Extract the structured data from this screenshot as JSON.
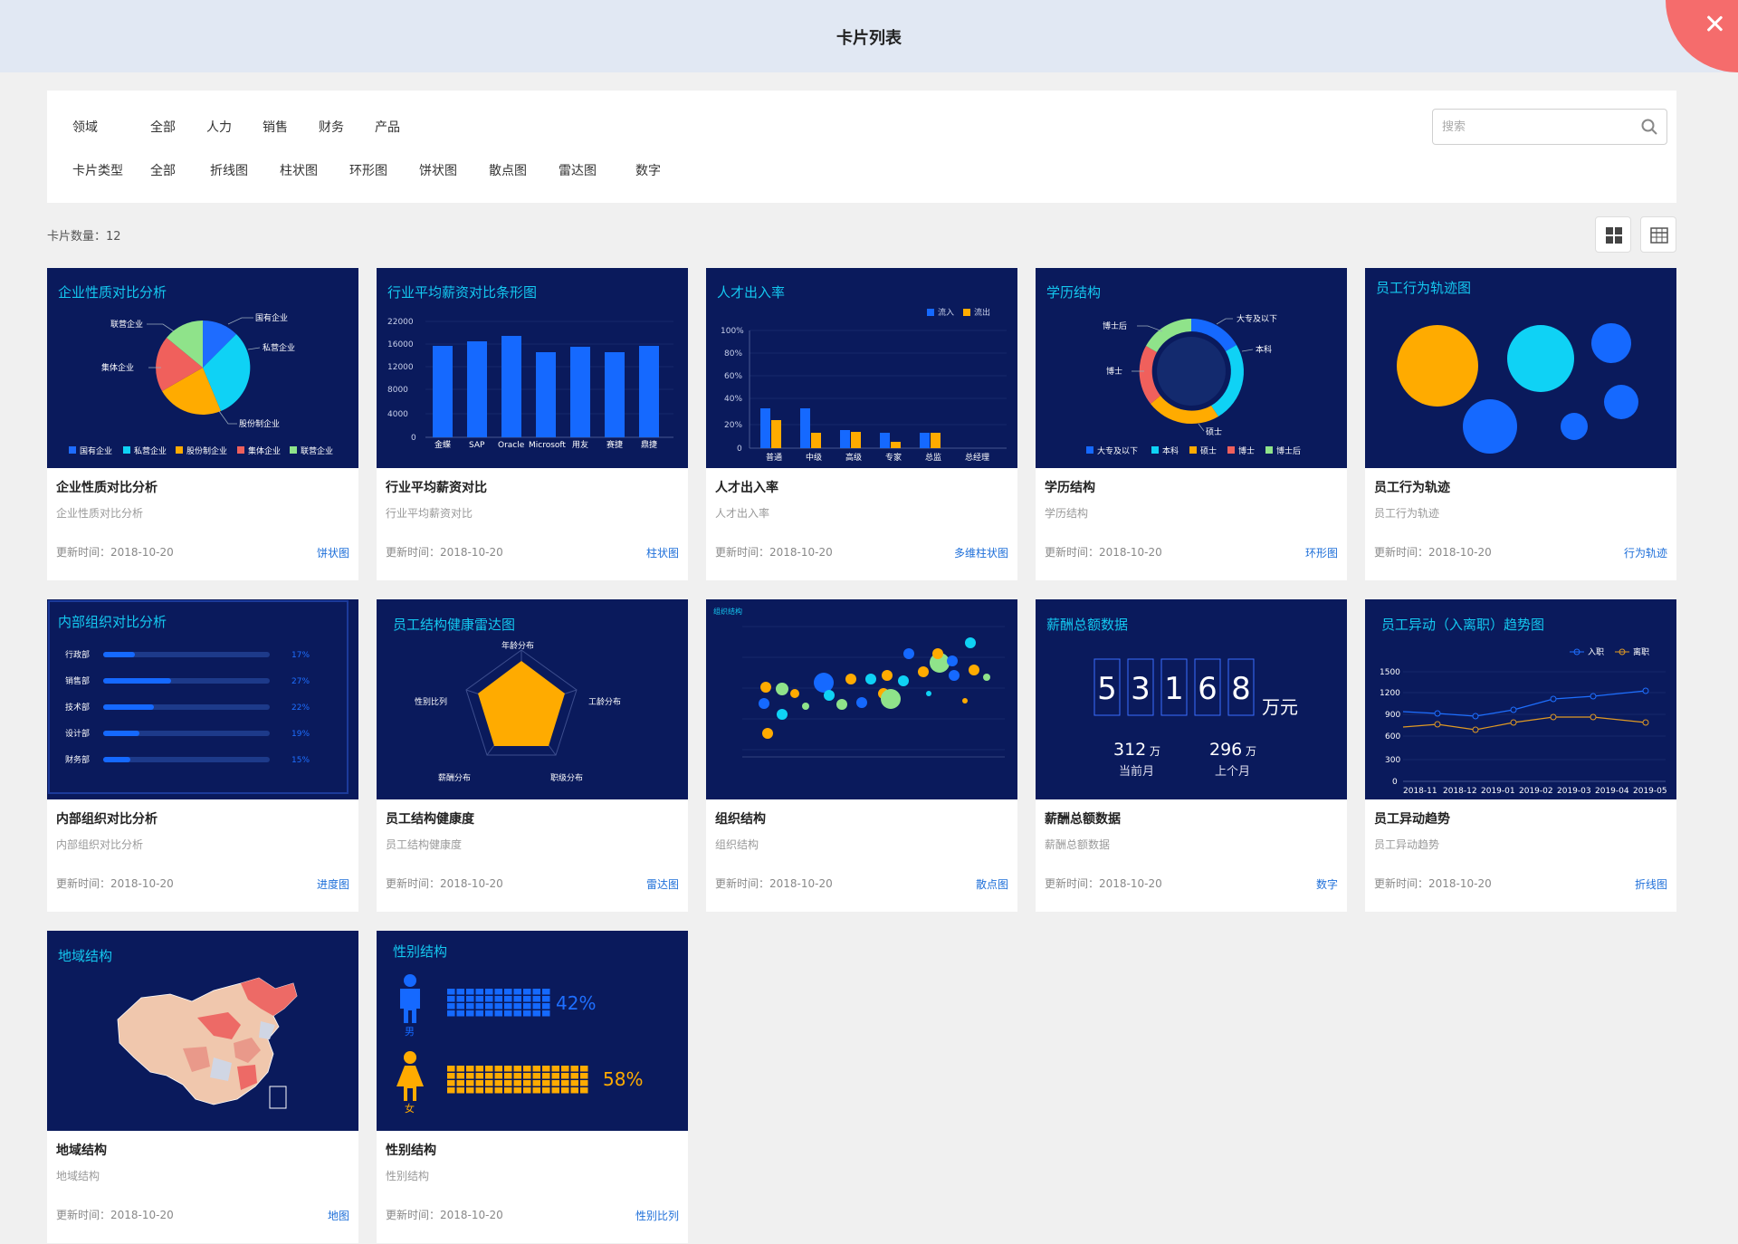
{
  "header": {
    "title": "卡片列表"
  },
  "filters": {
    "domain_label": "领域",
    "domain_options": [
      "全部",
      "人力",
      "销售",
      "财务",
      "产品"
    ],
    "type_label": "卡片类型",
    "type_options": [
      "全部",
      "折线图",
      "柱状图",
      "环形图",
      "饼状图",
      "散点图",
      "雷达图",
      "数字"
    ]
  },
  "search": {
    "placeholder": "搜索"
  },
  "count": {
    "label": "卡片数量：12"
  },
  "colors": {
    "panel": "#0a1a5c",
    "accent": "#1e6fd9",
    "cyan": "#14c8f0",
    "orange": "#ffab00"
  },
  "cards": [
    {
      "thumb_title": "企业性质对比分析",
      "title": "企业性质对比分析",
      "desc": "企业性质对比分析",
      "updated": "更新时间：2018-10-20",
      "type": "饼状图",
      "legend": [
        "国有企业",
        "私营企业",
        "股份制企业",
        "集体企业",
        "联营企业"
      ]
    },
    {
      "thumb_title": "行业平均薪资对比条形图",
      "title": "行业平均薪资对比",
      "desc": "行业平均薪资对比",
      "updated": "更新时间：2018-10-20",
      "type": "柱状图",
      "categories": [
        "金蝶",
        "SAP",
        "Oracle",
        "Microsoft",
        "用友",
        "赛捷",
        "鼎捷"
      ],
      "yticks": [
        "22000",
        "16000",
        "12000",
        "8000",
        "4000",
        "0"
      ]
    },
    {
      "thumb_title": "人才出入率",
      "title": "人才出入率",
      "desc": "人才出入率",
      "updated": "更新时间：2018-10-20",
      "type": "多维柱状图",
      "legend": [
        "流入",
        "流出"
      ],
      "categories": [
        "普通",
        "中级",
        "高级",
        "专家",
        "总监",
        "总经理"
      ],
      "yticks": [
        "100%",
        "80%",
        "60%",
        "40%",
        "20%",
        "0"
      ]
    },
    {
      "thumb_title": "学历结构",
      "title": "学历结构",
      "desc": "学历结构",
      "updated": "更新时间：2018-10-20",
      "type": "环形图",
      "labels": [
        "大专及以下",
        "本科",
        "硕士",
        "博士",
        "博士后"
      ]
    },
    {
      "thumb_title": "员工行为轨迹图",
      "title": "员工行为轨迹",
      "desc": "员工行为轨迹",
      "updated": "更新时间：2018-10-20",
      "type": "行为轨迹"
    },
    {
      "thumb_title": "内部组织对比分析",
      "title": "内部组织对比分析",
      "desc": "内部组织对比分析",
      "updated": "更新时间：2018-10-20",
      "type": "进度图",
      "rows": [
        {
          "name": "行政部",
          "pct": "17%"
        },
        {
          "name": "销售部",
          "pct": "27%"
        },
        {
          "name": "技术部",
          "pct": "22%"
        },
        {
          "name": "设计部",
          "pct": "19%"
        },
        {
          "name": "财务部",
          "pct": "15%"
        }
      ]
    },
    {
      "thumb_title": "员工结构健康雷达图",
      "title": "员工结构健康度",
      "desc": "员工结构健康度",
      "updated": "更新时间：2018-10-20",
      "type": "雷达图",
      "axes": [
        "年龄分布",
        "工龄分布",
        "职级分布",
        "薪酬分布",
        "性别比列"
      ]
    },
    {
      "thumb_title": "组织结构",
      "title": "组织结构",
      "desc": "组织结构",
      "updated": "更新时间：2018-10-20",
      "type": "散点图"
    },
    {
      "thumb_title": "薪酬总额数据",
      "title": "薪酬总额数据",
      "desc": "薪酬总额数据",
      "updated": "更新时间：2018-10-20",
      "type": "数字",
      "digits": [
        "5",
        "3",
        "1",
        "6",
        "8"
      ],
      "unit": "万元",
      "cur_value": "312",
      "cur_unit": "万",
      "cur_label": "当前月",
      "prev_value": "296",
      "prev_unit": "万",
      "prev_label": "上个月"
    },
    {
      "thumb_title": "员工异动（入离职）趋势图",
      "title": "员工异动趋势",
      "desc": "员工异动趋势",
      "updated": "更新时间：2018-10-20",
      "type": "折线图",
      "legend": [
        "入职",
        "离职"
      ],
      "categories": [
        "2018-11",
        "2018-12",
        "2019-01",
        "2019-02",
        "2019-03",
        "2019-04",
        "2019-05"
      ],
      "yticks": [
        "1500",
        "1200",
        "900",
        "600",
        "300",
        "0"
      ]
    },
    {
      "thumb_title": "地域结构",
      "title": "地域结构",
      "desc": "地域结构",
      "updated": "更新时间：2018-10-20",
      "type": "地图"
    },
    {
      "thumb_title": "性别结构",
      "title": "性别结构",
      "desc": "性别结构",
      "updated": "更新时间：2018-10-20",
      "type": "性别比列",
      "male_label": "男",
      "male_pct": "42%",
      "female_label": "女",
      "female_pct": "58%"
    }
  ]
}
